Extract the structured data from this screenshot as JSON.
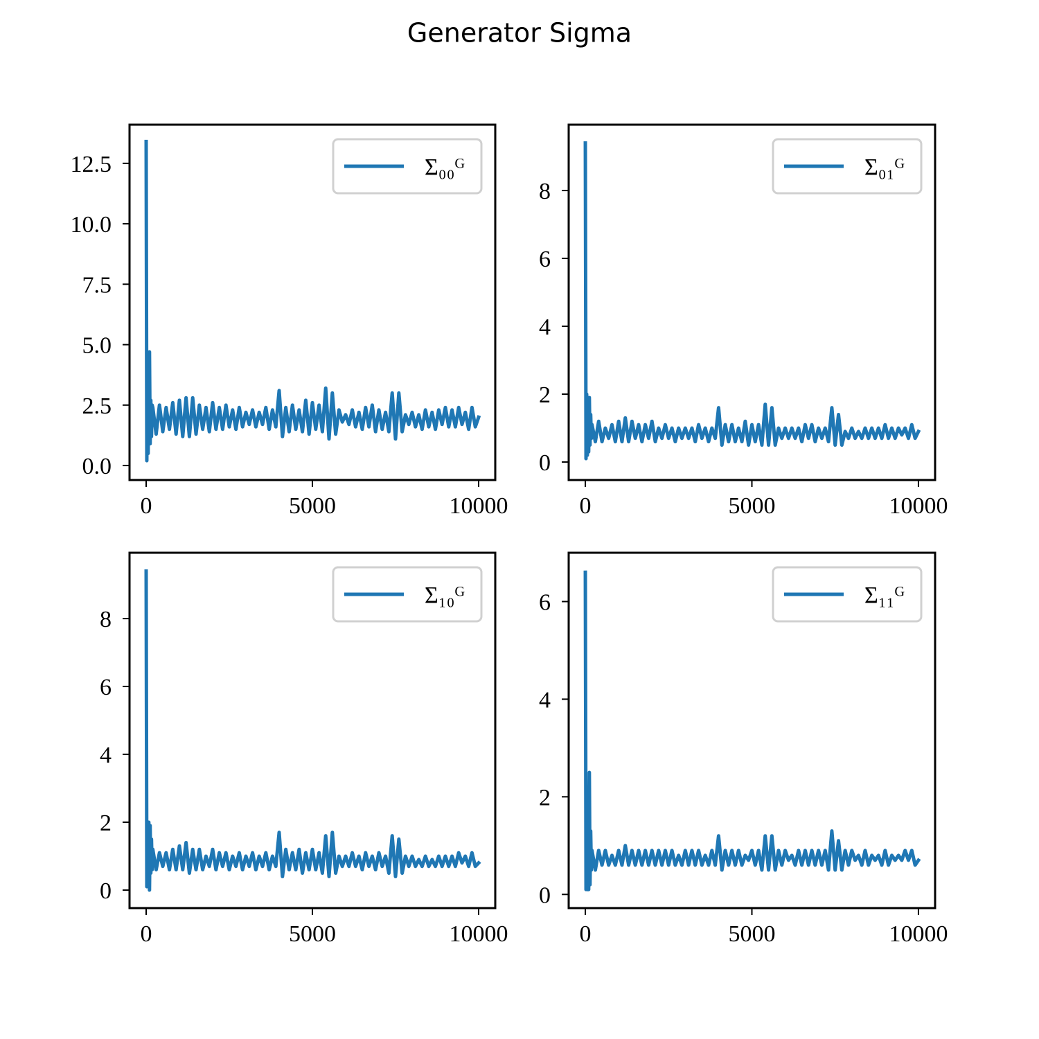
{
  "title": "Generator Sigma",
  "chart_data": [
    {
      "type": "line",
      "legend": "upper right",
      "x": [
        0,
        20,
        40,
        60,
        80,
        100,
        120,
        140,
        160,
        180,
        200,
        300,
        400,
        500,
        600,
        700,
        800,
        900,
        1000,
        1100,
        1200,
        1300,
        1400,
        1500,
        1600,
        1700,
        1800,
        1900,
        2000,
        2100,
        2200,
        2300,
        2400,
        2500,
        2600,
        2700,
        2800,
        2900,
        3000,
        3100,
        3200,
        3300,
        3400,
        3500,
        3600,
        3700,
        3800,
        3900,
        4000,
        4100,
        4200,
        4300,
        4400,
        4500,
        4600,
        4700,
        4800,
        4900,
        5000,
        5100,
        5200,
        5300,
        5400,
        5500,
        5600,
        5700,
        5800,
        5900,
        6000,
        6100,
        6200,
        6300,
        6400,
        6500,
        6600,
        6700,
        6800,
        6900,
        7000,
        7100,
        7200,
        7300,
        7400,
        7500,
        7600,
        7700,
        7800,
        7900,
        8000,
        8100,
        8200,
        8300,
        8400,
        8500,
        8600,
        8700,
        8800,
        8900,
        9000,
        9100,
        9200,
        9300,
        9400,
        9500,
        9600,
        9700,
        9800,
        9900,
        10000
      ],
      "series": [
        {
          "name": "Σ₀₀ᴳ",
          "color": "#1f77b4",
          "values": [
            13.4,
            0.2,
            4.4,
            0.5,
            3.8,
            4.7,
            0.9,
            2.7,
            1.2,
            2.5,
            2.4,
            1.3,
            2.5,
            1.4,
            2.4,
            1.5,
            2.6,
            1.3,
            2.7,
            1.2,
            2.8,
            1.2,
            2.8,
            1.3,
            2.5,
            1.5,
            2.4,
            1.4,
            2.6,
            1.5,
            2.4,
            1.5,
            2.5,
            1.6,
            2.3,
            1.5,
            2.4,
            1.6,
            2.2,
            1.7,
            2.3,
            1.6,
            2.2,
            1.7,
            2.4,
            1.5,
            2.3,
            1.6,
            3.1,
            1.2,
            2.4,
            1.4,
            2.5,
            1.5,
            2.3,
            1.4,
            2.7,
            1.3,
            2.6,
            1.5,
            2.5,
            1.4,
            3.2,
            1.1,
            3.0,
            1.3,
            2.3,
            1.8,
            2.1,
            1.7,
            2.3,
            1.6,
            2.2,
            1.5,
            2.4,
            1.6,
            2.5,
            1.4,
            2.3,
            1.5,
            2.2,
            1.4,
            3.0,
            1.1,
            3.0,
            1.4,
            2.1,
            1.7,
            2.2,
            1.6,
            2.1,
            1.5,
            2.3,
            1.6,
            2.2,
            1.5,
            2.3,
            1.7,
            2.4,
            1.6,
            2.3,
            1.6,
            2.4,
            1.7,
            2.2,
            1.5,
            2.4,
            1.6,
            2.0
          ]
        }
      ],
      "xlim": [
        -500,
        10500
      ],
      "ylim": [
        -0.6,
        14.1
      ],
      "xticks": [
        0,
        5000,
        10000
      ],
      "yticks": [
        {
          "value": 0,
          "label": "0.0"
        },
        2.5,
        {
          "value": 5,
          "label": "5.0"
        },
        7.5,
        {
          "value": 10,
          "label": "10.0"
        },
        12.5
      ]
    },
    {
      "type": "line",
      "legend": "upper right",
      "x": [
        0,
        20,
        40,
        60,
        80,
        100,
        120,
        140,
        160,
        180,
        200,
        300,
        400,
        500,
        600,
        700,
        800,
        900,
        1000,
        1100,
        1200,
        1300,
        1400,
        1500,
        1600,
        1700,
        1800,
        1900,
        2000,
        2100,
        2200,
        2300,
        2400,
        2500,
        2600,
        2700,
        2800,
        2900,
        3000,
        3100,
        3200,
        3300,
        3400,
        3500,
        3600,
        3700,
        3800,
        3900,
        4000,
        4100,
        4200,
        4300,
        4400,
        4500,
        4600,
        4700,
        4800,
        4900,
        5000,
        5100,
        5200,
        5300,
        5400,
        5500,
        5600,
        5700,
        5800,
        5900,
        6000,
        6100,
        6200,
        6300,
        6400,
        6500,
        6600,
        6700,
        6800,
        6900,
        7000,
        7100,
        7200,
        7300,
        7400,
        7500,
        7600,
        7700,
        7800,
        7900,
        8000,
        8100,
        8200,
        8300,
        8400,
        8500,
        8600,
        8700,
        8800,
        8900,
        9000,
        9100,
        9200,
        9300,
        9400,
        9500,
        9600,
        9700,
        9800,
        9900,
        10000
      ],
      "series": [
        {
          "name": "Σ₀₁ᴳ",
          "color": "#1f77b4",
          "values": [
            9.4,
            0.1,
            2.0,
            0.2,
            1.9,
            0.3,
            1.9,
            0.5,
            1.4,
            0.7,
            1.1,
            0.6,
            1.2,
            0.6,
            1.0,
            0.7,
            1.1,
            0.6,
            1.2,
            0.6,
            1.3,
            0.6,
            1.2,
            0.7,
            1.1,
            0.6,
            1.1,
            0.7,
            1.2,
            0.6,
            1.0,
            0.7,
            1.1,
            0.7,
            1.0,
            0.6,
            1.0,
            0.7,
            1.0,
            0.7,
            1.0,
            0.6,
            1.1,
            0.7,
            1.0,
            0.6,
            1.0,
            0.7,
            1.6,
            0.5,
            1.1,
            0.6,
            1.1,
            0.6,
            1.0,
            0.6,
            1.2,
            0.5,
            1.1,
            0.6,
            1.1,
            0.5,
            1.7,
            0.5,
            1.6,
            0.5,
            1.0,
            0.7,
            1.0,
            0.7,
            1.0,
            0.7,
            1.0,
            0.6,
            1.1,
            0.7,
            1.1,
            0.6,
            1.0,
            0.7,
            1.0,
            0.6,
            1.6,
            0.5,
            1.4,
            0.5,
            0.9,
            0.7,
            1.0,
            0.7,
            0.9,
            0.7,
            1.0,
            0.7,
            1.0,
            0.7,
            1.0,
            0.7,
            1.1,
            0.7,
            1.0,
            0.7,
            1.0,
            0.8,
            1.0,
            0.7,
            1.1,
            0.7,
            0.9
          ]
        }
      ],
      "xlim": [
        -500,
        10500
      ],
      "ylim": [
        -0.53,
        9.94
      ],
      "xticks": [
        0,
        5000,
        10000
      ],
      "yticks": [
        0,
        2,
        4,
        6,
        8
      ]
    },
    {
      "type": "line",
      "legend": "upper right",
      "x": [
        0,
        20,
        40,
        60,
        80,
        100,
        120,
        140,
        160,
        180,
        200,
        300,
        400,
        500,
        600,
        700,
        800,
        900,
        1000,
        1100,
        1200,
        1300,
        1400,
        1500,
        1600,
        1700,
        1800,
        1900,
        2000,
        2100,
        2200,
        2300,
        2400,
        2500,
        2600,
        2700,
        2800,
        2900,
        3000,
        3100,
        3200,
        3300,
        3400,
        3500,
        3600,
        3700,
        3800,
        3900,
        4000,
        4100,
        4200,
        4300,
        4400,
        4500,
        4600,
        4700,
        4800,
        4900,
        5000,
        5100,
        5200,
        5300,
        5400,
        5500,
        5600,
        5700,
        5800,
        5900,
        6000,
        6100,
        6200,
        6300,
        6400,
        6500,
        6600,
        6700,
        6800,
        6900,
        7000,
        7100,
        7200,
        7300,
        7400,
        7500,
        7600,
        7700,
        7800,
        7900,
        8000,
        8100,
        8200,
        8300,
        8400,
        8500,
        8600,
        8700,
        8800,
        8900,
        9000,
        9100,
        9200,
        9300,
        9400,
        9500,
        9600,
        9700,
        9800,
        9900,
        10000
      ],
      "series": [
        {
          "name": "Σ₁₀ᴳ",
          "color": "#1f77b4",
          "values": [
            9.4,
            0.1,
            2.0,
            0.3,
            2.0,
            0.0,
            1.9,
            0.5,
            1.5,
            0.6,
            1.2,
            0.6,
            1.1,
            0.7,
            1.1,
            0.6,
            1.2,
            0.6,
            1.3,
            0.6,
            1.4,
            0.5,
            1.2,
            0.6,
            1.2,
            0.6,
            1.0,
            0.7,
            1.2,
            0.6,
            1.1,
            0.7,
            1.1,
            0.6,
            1.0,
            0.7,
            1.1,
            0.6,
            1.0,
            0.7,
            1.1,
            0.6,
            1.0,
            0.7,
            1.1,
            0.6,
            1.0,
            0.7,
            1.7,
            0.4,
            1.2,
            0.6,
            1.1,
            0.6,
            1.2,
            0.5,
            1.1,
            0.6,
            1.2,
            0.6,
            1.1,
            0.5,
            1.6,
            0.4,
            1.7,
            0.5,
            1.0,
            0.7,
            1.0,
            0.7,
            1.1,
            0.7,
            1.0,
            0.6,
            1.1,
            0.7,
            1.0,
            0.6,
            1.1,
            0.7,
            1.0,
            0.5,
            1.6,
            0.4,
            1.5,
            0.5,
            1.0,
            0.7,
            1.0,
            0.7,
            0.9,
            0.7,
            1.0,
            0.7,
            0.9,
            0.7,
            1.0,
            0.7,
            1.0,
            0.7,
            1.0,
            0.7,
            1.1,
            0.8,
            1.0,
            0.7,
            1.1,
            0.7,
            0.8
          ]
        }
      ],
      "xlim": [
        -500,
        10500
      ],
      "ylim": [
        -0.53,
        9.94
      ],
      "xticks": [
        0,
        5000,
        10000
      ],
      "yticks": [
        0,
        2,
        4,
        6,
        8
      ]
    },
    {
      "type": "line",
      "legend": "upper right",
      "x": [
        0,
        20,
        40,
        60,
        80,
        100,
        120,
        140,
        160,
        180,
        200,
        300,
        400,
        500,
        600,
        700,
        800,
        900,
        1000,
        1100,
        1200,
        1300,
        1400,
        1500,
        1600,
        1700,
        1800,
        1900,
        2000,
        2100,
        2200,
        2300,
        2400,
        2500,
        2600,
        2700,
        2800,
        2900,
        3000,
        3100,
        3200,
        3300,
        3400,
        3500,
        3600,
        3700,
        3800,
        3900,
        4000,
        4100,
        4200,
        4300,
        4400,
        4500,
        4600,
        4700,
        4800,
        4900,
        5000,
        5100,
        5200,
        5300,
        5400,
        5500,
        5600,
        5700,
        5800,
        5900,
        6000,
        6100,
        6200,
        6300,
        6400,
        6500,
        6600,
        6700,
        6800,
        6900,
        7000,
        7100,
        7200,
        7300,
        7400,
        7500,
        7600,
        7700,
        7800,
        7900,
        8000,
        8100,
        8200,
        8300,
        8400,
        8500,
        8600,
        8700,
        8800,
        8900,
        9000,
        9100,
        9200,
        9300,
        9400,
        9500,
        9600,
        9700,
        9800,
        9900,
        10000
      ],
      "series": [
        {
          "name": "Σ₁₁ᴳ",
          "color": "#1f77b4",
          "values": [
            6.6,
            0.1,
            2.1,
            0.1,
            2.2,
            0.1,
            2.5,
            0.2,
            1.3,
            0.5,
            0.9,
            0.5,
            0.9,
            0.6,
            0.9,
            0.6,
            0.8,
            0.6,
            0.9,
            0.6,
            1.0,
            0.6,
            0.9,
            0.6,
            0.9,
            0.6,
            0.9,
            0.6,
            0.9,
            0.6,
            0.9,
            0.6,
            0.9,
            0.6,
            0.9,
            0.6,
            0.8,
            0.6,
            0.9,
            0.6,
            0.9,
            0.6,
            0.9,
            0.6,
            0.8,
            0.6,
            0.9,
            0.6,
            1.2,
            0.5,
            0.9,
            0.6,
            0.9,
            0.6,
            0.9,
            0.6,
            0.8,
            0.7,
            0.9,
            0.6,
            0.9,
            0.5,
            1.2,
            0.5,
            1.2,
            0.5,
            0.9,
            0.6,
            0.9,
            0.7,
            0.8,
            0.6,
            0.9,
            0.6,
            0.9,
            0.6,
            0.9,
            0.6,
            0.9,
            0.6,
            0.9,
            0.5,
            1.3,
            0.5,
            1.1,
            0.5,
            0.9,
            0.6,
            0.9,
            0.7,
            0.8,
            0.6,
            0.9,
            0.6,
            0.8,
            0.7,
            0.8,
            0.6,
            0.9,
            0.6,
            0.8,
            0.7,
            0.8,
            0.7,
            0.9,
            0.7,
            0.9,
            0.6,
            0.7
          ]
        }
      ],
      "xlim": [
        -500,
        10500
      ],
      "ylim": [
        -0.28,
        7.0
      ],
      "xticks": [
        0,
        5000,
        10000
      ],
      "yticks": [
        0,
        2,
        4,
        6
      ]
    }
  ]
}
